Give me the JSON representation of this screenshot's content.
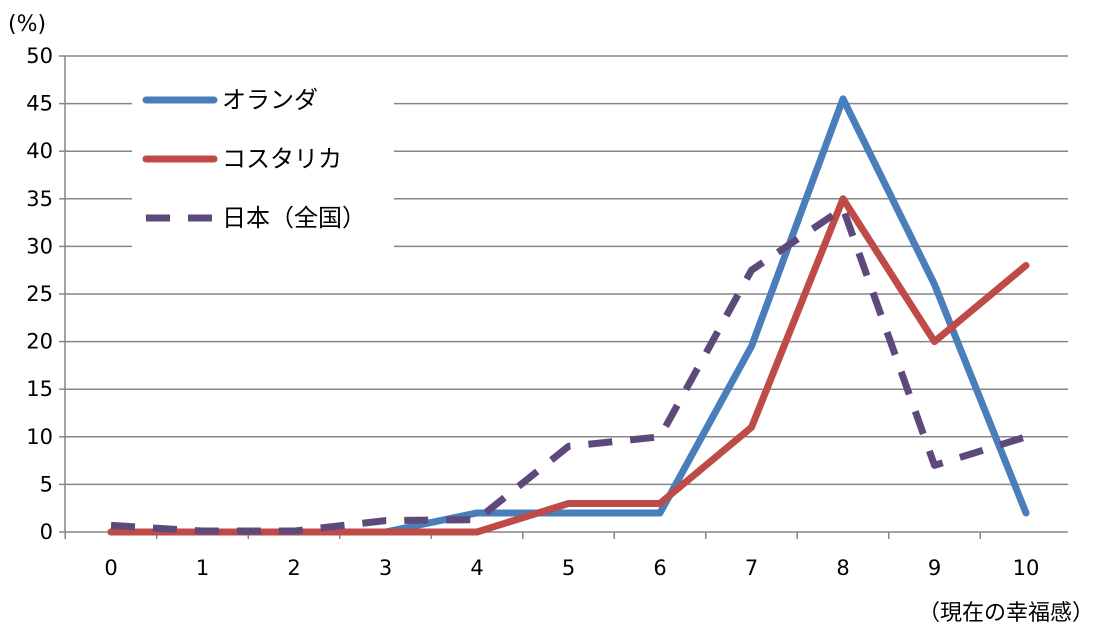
{
  "chart_data": {
    "type": "line",
    "ylabel": "(%)",
    "xlabel": "（現在の幸福感）",
    "x": [
      0,
      1,
      2,
      3,
      4,
      5,
      6,
      7,
      8,
      9,
      10
    ],
    "x_tick_labels": [
      "0",
      "1",
      "2",
      "3",
      "4",
      "5",
      "6",
      "7",
      "8",
      "9",
      "10"
    ],
    "ylim": [
      0,
      50
    ],
    "y_ticks": [
      0,
      5,
      10,
      15,
      20,
      25,
      30,
      35,
      40,
      45,
      50
    ],
    "y_tick_labels": [
      "0",
      "5",
      "10",
      "15",
      "20",
      "25",
      "30",
      "35",
      "40",
      "45",
      "50"
    ],
    "grid": "horizontal",
    "legend_position": "top-left",
    "series": [
      {
        "name": "オランダ",
        "color": "#4A7EBB",
        "style": "solid",
        "values": [
          0,
          0,
          0,
          0,
          2,
          2,
          2,
          19.5,
          45.5,
          26,
          2
        ]
      },
      {
        "name": "コスタリカ",
        "color": "#BE4B48",
        "style": "solid",
        "values": [
          0,
          0,
          0,
          0,
          0,
          3,
          3,
          11,
          35,
          20,
          28
        ]
      },
      {
        "name": "日本（全国）",
        "color": "#5E4A7A",
        "style": "dashed",
        "values": [
          0.7,
          0.1,
          0.1,
          1.2,
          1.3,
          9,
          10,
          27.5,
          34,
          7,
          10
        ]
      }
    ]
  }
}
